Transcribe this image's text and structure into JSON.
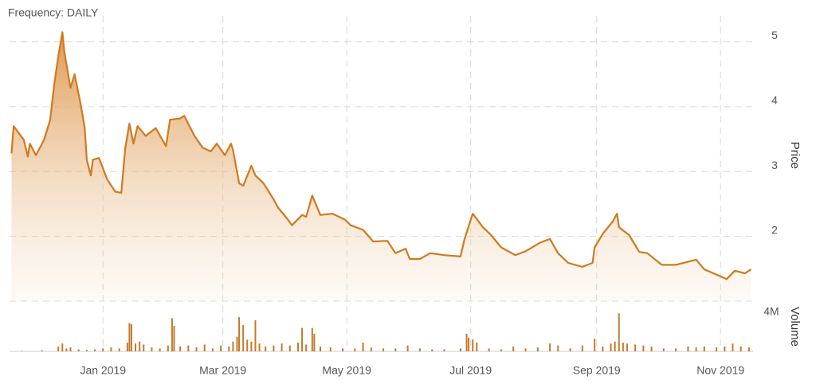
{
  "header": {
    "frequency": "Frequency: DAILY"
  },
  "chart_data": [
    {
      "type": "area",
      "ylabel": "Price",
      "color": "#d07a1c",
      "grid": true,
      "xlim": [
        -46,
        320
      ],
      "ylim": [
        1,
        5.4
      ],
      "yticks": [
        2,
        3,
        4,
        5
      ],
      "x": [
        -45,
        -44,
        -39,
        -37,
        -36,
        -33,
        -29,
        -26,
        -24,
        -22,
        -20,
        -19,
        -16,
        -14,
        -11,
        -9,
        -8,
        -6,
        -5,
        -2,
        2,
        6,
        9,
        11,
        13,
        15,
        17,
        21,
        26,
        31,
        33,
        38,
        40,
        45,
        49,
        53,
        56,
        60,
        63,
        64,
        67,
        69,
        73,
        75,
        79,
        84,
        86,
        91,
        93,
        98,
        100,
        103,
        107,
        113,
        119,
        122,
        128,
        133,
        140,
        144,
        149,
        151,
        156,
        161,
        168,
        176,
        178,
        182,
        187,
        191,
        196,
        203,
        208,
        215,
        220,
        224,
        229,
        236,
        241,
        242,
        246,
        251,
        253,
        254,
        259,
        264,
        268,
        275,
        282,
        292,
        296,
        307,
        311,
        316,
        319
      ],
      "values": [
        3.28,
        3.7,
        3.49,
        3.23,
        3.43,
        3.25,
        3.49,
        3.8,
        4.35,
        4.78,
        5.15,
        4.84,
        4.29,
        4.5,
        4.04,
        3.67,
        3.18,
        2.94,
        3.18,
        3.21,
        2.88,
        2.69,
        2.67,
        3.37,
        3.74,
        3.43,
        3.7,
        3.55,
        3.67,
        3.39,
        3.8,
        3.82,
        3.86,
        3.55,
        3.37,
        3.31,
        3.43,
        3.25,
        3.43,
        3.33,
        2.82,
        2.78,
        3.09,
        2.94,
        2.82,
        2.57,
        2.45,
        2.26,
        2.17,
        2.33,
        2.3,
        2.63,
        2.33,
        2.35,
        2.26,
        2.17,
        2.1,
        1.92,
        1.93,
        1.74,
        1.81,
        1.65,
        1.65,
        1.74,
        1.71,
        1.69,
        1.96,
        2.35,
        2.14,
        2.02,
        1.83,
        1.71,
        1.77,
        1.9,
        1.96,
        1.74,
        1.59,
        1.53,
        1.59,
        1.83,
        2.04,
        2.23,
        2.35,
        2.14,
        2.02,
        1.76,
        1.74,
        1.56,
        1.56,
        1.64,
        1.49,
        1.34,
        1.47,
        1.43,
        1.49
      ]
    },
    {
      "type": "bar",
      "ylabel": "Volume",
      "color": "#c57a2a",
      "xlim": [
        -46,
        320
      ],
      "ylim": [
        0,
        4000000
      ],
      "yticks": [
        {
          "value": 4000000,
          "label": "4M"
        }
      ],
      "xticks": [
        {
          "value": 0,
          "label": "Jan 2019"
        },
        {
          "value": 59,
          "label": "Mar 2019"
        },
        {
          "value": 120,
          "label": "May 2019"
        },
        {
          "value": 181,
          "label": "Jul 2019"
        },
        {
          "value": 243,
          "label": "Sep 2019"
        },
        {
          "value": 304,
          "label": "Nov 2019"
        }
      ],
      "x": [
        -40,
        -30,
        -22,
        -20,
        -18,
        -16,
        -12,
        -8,
        -4,
        0,
        4,
        8,
        12,
        13,
        14,
        16,
        18,
        20,
        24,
        28,
        32,
        34,
        35,
        38,
        42,
        46,
        50,
        54,
        58,
        62,
        64,
        66,
        67,
        69,
        71,
        73,
        75,
        77,
        80,
        84,
        88,
        92,
        96,
        98,
        100,
        103,
        104,
        107,
        112,
        118,
        124,
        128,
        132,
        138,
        144,
        150,
        156,
        162,
        168,
        176,
        179,
        180,
        182,
        184,
        190,
        196,
        202,
        208,
        214,
        220,
        224,
        230,
        236,
        242,
        246,
        250,
        252,
        254,
        256,
        258,
        262,
        266,
        270,
        276,
        282,
        288,
        292,
        296,
        302,
        306,
        310,
        314,
        318
      ],
      "values": [
        50000,
        100000,
        500000,
        800000,
        300000,
        400000,
        200000,
        150000,
        200000,
        300000,
        400000,
        300000,
        900000,
        2900000,
        2800000,
        800000,
        1000000,
        700000,
        400000,
        300000,
        600000,
        3400000,
        2600000,
        500000,
        600000,
        400000,
        700000,
        300000,
        600000,
        500000,
        1000000,
        1500000,
        3500000,
        2700000,
        1200000,
        1000000,
        3200000,
        800000,
        500000,
        600000,
        800000,
        600000,
        900000,
        2400000,
        700000,
        2400000,
        1800000,
        500000,
        400000,
        300000,
        300000,
        900000,
        400000,
        300000,
        300000,
        600000,
        300000,
        200000,
        200000,
        300000,
        1800000,
        1400000,
        1200000,
        900000,
        300000,
        200000,
        500000,
        300000,
        400000,
        800000,
        600000,
        300000,
        600000,
        1300000,
        500000,
        800000,
        1000000,
        3900000,
        900000,
        800000,
        700000,
        600000,
        500000,
        300000,
        300000,
        500000,
        400000,
        500000,
        400000,
        500000,
        800000,
        500000,
        400000
      ]
    }
  ]
}
